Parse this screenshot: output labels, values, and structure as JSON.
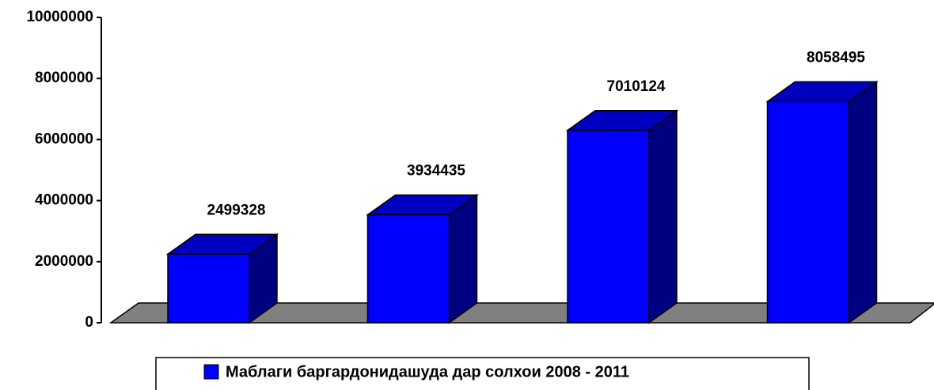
{
  "chart_data": {
    "type": "bar3d",
    "categories": [
      null,
      null,
      null,
      null
    ],
    "series": [
      {
        "name": "Маблаги баргардонидашуда  дар солхои 2008 - 2011",
        "color": "#0000ff",
        "values": [
          2499328,
          3934435,
          7010124,
          8058495
        ]
      }
    ],
    "ylim": [
      0,
      10000000
    ],
    "yticks": [
      0,
      2000000,
      4000000,
      6000000,
      8000000,
      10000000
    ],
    "legend": "bottom"
  }
}
